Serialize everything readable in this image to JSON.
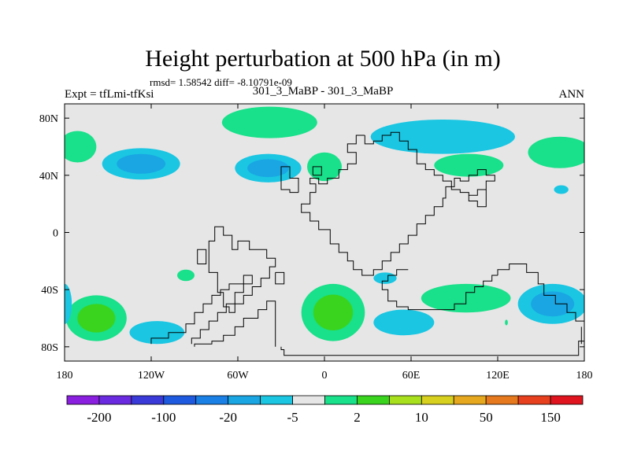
{
  "chart_data": {
    "type": "heatmap",
    "title": "Height perturbation at 500 hPa (in m)",
    "stats_text": "rmsd= 1.58542  diff= -8.10791e-09",
    "left_label": "Expt = tfLmi-tfKsi",
    "center_label": "301_3_MaBP - 301_3_MaBP",
    "right_label": "ANN",
    "xlim": [
      -180,
      180
    ],
    "ylim": [
      -90,
      90
    ],
    "x_ticks": [
      {
        "value": -180,
        "label": "180"
      },
      {
        "value": -120,
        "label": "120W"
      },
      {
        "value": -60,
        "label": "60W"
      },
      {
        "value": 0,
        "label": "0"
      },
      {
        "value": 60,
        "label": "60E"
      },
      {
        "value": 120,
        "label": "120E"
      },
      {
        "value": 180,
        "label": "180"
      }
    ],
    "y_ticks": [
      {
        "value": 80,
        "label": "80N"
      },
      {
        "value": 40,
        "label": "40N"
      },
      {
        "value": 0,
        "label": "0"
      },
      {
        "value": -40,
        "label": "40S"
      },
      {
        "value": -80,
        "label": "80S"
      }
    ],
    "colorbar": {
      "colors": [
        "#8a1fe0",
        "#6a2ae0",
        "#3a3ad8",
        "#1e5ae0",
        "#1a80e6",
        "#19a6e3",
        "#1ac6e2",
        "#e6e6e6",
        "#19e08a",
        "#3ad41e",
        "#a8e01e",
        "#d8d01e",
        "#e6a81e",
        "#e6781e",
        "#e6401e",
        "#e0141e"
      ],
      "tick_labels": [
        "-200",
        "-100",
        "-20",
        "-5",
        "2",
        "10",
        "50",
        "150"
      ]
    },
    "field_color": "#e6e6e6",
    "anomalies": [
      {
        "lon": -38,
        "lat": 77,
        "rx": 33,
        "ry": 11,
        "levels": [
          "#19e08a"
        ]
      },
      {
        "lon": 82,
        "lat": 67,
        "rx": 50,
        "ry": 12,
        "levels": [
          "#1ac6e2"
        ]
      },
      {
        "lon": -171,
        "lat": 60,
        "rx": 13,
        "ry": 11,
        "levels": [
          "#19e08a"
        ]
      },
      {
        "lon": -127,
        "lat": 48,
        "rx": 27,
        "ry": 11,
        "levels": [
          "#1ac6e2",
          "#19a6e3"
        ]
      },
      {
        "lon": -39,
        "lat": 45,
        "rx": 23,
        "ry": 10,
        "levels": [
          "#1ac6e2",
          "#19a6e3"
        ]
      },
      {
        "lon": 0,
        "lat": 46,
        "rx": 12,
        "ry": 10,
        "levels": [
          "#19e08a"
        ]
      },
      {
        "lon": 100,
        "lat": 47,
        "rx": 24,
        "ry": 8,
        "levels": [
          "#19e08a"
        ]
      },
      {
        "lon": 163,
        "lat": 56,
        "rx": 22,
        "ry": 11,
        "levels": [
          "#19e08a"
        ]
      },
      {
        "lon": 164,
        "lat": 30,
        "rx": 5,
        "ry": 3,
        "levels": [
          "#1ac6e2"
        ]
      },
      {
        "lon": -96,
        "lat": -30,
        "rx": 6,
        "ry": 4,
        "levels": [
          "#19e08a"
        ]
      },
      {
        "lon": 42,
        "lat": -32,
        "rx": 8,
        "ry": 4,
        "levels": [
          "#1ac6e2"
        ]
      },
      {
        "lon": -158,
        "lat": -60,
        "rx": 21,
        "ry": 16,
        "levels": [
          "#19e08a",
          "#3ad41e"
        ]
      },
      {
        "lon": -116,
        "lat": -70,
        "rx": 19,
        "ry": 8,
        "levels": [
          "#1ac6e2"
        ]
      },
      {
        "lon": -180,
        "lat": -50,
        "rx": 5,
        "ry": 14,
        "levels": [
          "#1ac6e2"
        ]
      },
      {
        "lon": 6,
        "lat": -56,
        "rx": 22,
        "ry": 20,
        "levels": [
          "#19e08a",
          "#3ad41e"
        ]
      },
      {
        "lon": 55,
        "lat": -63,
        "rx": 21,
        "ry": 9,
        "levels": [
          "#1ac6e2"
        ]
      },
      {
        "lon": 98,
        "lat": -46,
        "rx": 31,
        "ry": 10,
        "levels": [
          "#19e08a"
        ]
      },
      {
        "lon": 158,
        "lat": -50,
        "rx": 24,
        "ry": 14,
        "levels": [
          "#1ac6e2",
          "#19a6e3"
        ]
      },
      {
        "lon": 126,
        "lat": -63,
        "rx": 1,
        "ry": 2,
        "levels": [
          "#19e08a"
        ]
      }
    ],
    "outline_color": "#000000",
    "outlines": [
      [
        [
          28,
          68
        ],
        [
          28,
          62
        ],
        [
          34,
          62
        ],
        [
          34,
          64
        ],
        [
          40,
          64
        ],
        [
          40,
          68
        ],
        [
          46,
          68
        ],
        [
          46,
          70
        ],
        [
          52,
          70
        ],
        [
          52,
          64
        ],
        [
          58,
          64
        ],
        [
          58,
          58
        ],
        [
          64,
          58
        ],
        [
          64,
          48
        ],
        [
          70,
          48
        ],
        [
          70,
          44
        ],
        [
          76,
          44
        ],
        [
          76,
          40
        ],
        [
          82,
          40
        ],
        [
          82,
          36
        ],
        [
          88,
          36
        ],
        [
          88,
          30
        ],
        [
          94,
          30
        ],
        [
          94,
          28
        ],
        [
          100,
          28
        ],
        [
          100,
          26
        ],
        [
          106,
          26
        ],
        [
          106,
          30
        ],
        [
          112,
          30
        ],
        [
          112,
          36
        ],
        [
          118,
          36
        ],
        [
          118,
          40
        ],
        [
          112,
          40
        ],
        [
          112,
          44
        ],
        [
          106,
          44
        ],
        [
          106,
          40
        ],
        [
          100,
          40
        ],
        [
          100,
          36
        ],
        [
          94,
          36
        ],
        [
          94,
          38
        ],
        [
          90,
          38
        ],
        [
          90,
          32
        ],
        [
          84,
          32
        ],
        [
          84,
          24
        ],
        [
          82,
          24
        ],
        [
          82,
          18
        ],
        [
          76,
          18
        ],
        [
          76,
          12
        ],
        [
          70,
          12
        ],
        [
          70,
          6
        ],
        [
          64,
          6
        ],
        [
          64,
          -2
        ],
        [
          58,
          -2
        ],
        [
          58,
          -8
        ],
        [
          52,
          -8
        ],
        [
          52,
          -14
        ],
        [
          46,
          -14
        ],
        [
          46,
          -20
        ],
        [
          40,
          -20
        ],
        [
          40,
          -26
        ],
        [
          34,
          -26
        ],
        [
          34,
          -30
        ],
        [
          26,
          -30
        ],
        [
          26,
          -26
        ],
        [
          20,
          -26
        ],
        [
          20,
          -20
        ],
        [
          16,
          -20
        ],
        [
          16,
          -14
        ],
        [
          10,
          -14
        ],
        [
          10,
          -8
        ],
        [
          4,
          -8
        ],
        [
          4,
          2
        ],
        [
          -4,
          2
        ],
        [
          -4,
          8
        ],
        [
          -10,
          8
        ],
        [
          -10,
          14
        ],
        [
          -16,
          14
        ],
        [
          -16,
          20
        ],
        [
          -10,
          20
        ],
        [
          -10,
          28
        ],
        [
          -6,
          28
        ],
        [
          -6,
          34
        ],
        [
          -10,
          34
        ],
        [
          -10,
          38
        ],
        [
          -4,
          38
        ],
        [
          -4,
          34
        ],
        [
          2,
          34
        ],
        [
          2,
          38
        ],
        [
          10,
          38
        ],
        [
          10,
          44
        ],
        [
          16,
          44
        ],
        [
          16,
          48
        ],
        [
          22,
          48
        ],
        [
          22,
          56
        ],
        [
          16,
          56
        ],
        [
          16,
          62
        ],
        [
          22,
          62
        ],
        [
          22,
          68
        ],
        [
          28,
          68
        ]
      ],
      [
        [
          -18,
          28
        ],
        [
          -18,
          38
        ],
        [
          -24,
          38
        ],
        [
          -24,
          46
        ],
        [
          -30,
          46
        ],
        [
          -30,
          30
        ],
        [
          -24,
          30
        ],
        [
          -24,
          28
        ],
        [
          -18,
          28
        ]
      ],
      [
        [
          -8,
          40
        ],
        [
          -8,
          46
        ],
        [
          -2,
          46
        ],
        [
          -2,
          40
        ],
        [
          -8,
          40
        ]
      ],
      [
        [
          -80,
          -20
        ],
        [
          -80,
          -6
        ],
        [
          -76,
          -6
        ],
        [
          -76,
          4
        ],
        [
          -70,
          4
        ],
        [
          -70,
          -2
        ],
        [
          -64,
          -2
        ],
        [
          -64,
          -12
        ],
        [
          -60,
          -12
        ],
        [
          -60,
          -6
        ],
        [
          -52,
          -6
        ],
        [
          -52,
          -12
        ],
        [
          -40,
          -12
        ],
        [
          -40,
          -18
        ],
        [
          -34,
          -18
        ],
        [
          -34,
          -24
        ],
        [
          -38,
          -24
        ],
        [
          -38,
          -32
        ],
        [
          -44,
          -32
        ],
        [
          -44,
          -38
        ],
        [
          -50,
          -38
        ],
        [
          -50,
          -44
        ],
        [
          -56,
          -44
        ],
        [
          -56,
          -50
        ],
        [
          -62,
          -50
        ],
        [
          -62,
          -56
        ],
        [
          -66,
          -56
        ],
        [
          -66,
          -52
        ],
        [
          -70,
          -52
        ],
        [
          -70,
          -42
        ],
        [
          -74,
          -42
        ],
        [
          -74,
          -28
        ],
        [
          -80,
          -28
        ],
        [
          -80,
          -20
        ]
      ],
      [
        [
          -88,
          -22
        ],
        [
          -88,
          -12
        ],
        [
          -82,
          -12
        ],
        [
          -82,
          -22
        ],
        [
          -88,
          -22
        ]
      ],
      [
        [
          -34,
          -28
        ],
        [
          -34,
          -36
        ],
        [
          -28,
          -36
        ],
        [
          -28,
          -28
        ],
        [
          -34,
          -28
        ]
      ],
      [
        [
          120,
          -30
        ],
        [
          120,
          -26
        ],
        [
          128,
          -26
        ],
        [
          128,
          -22
        ],
        [
          140,
          -22
        ],
        [
          140,
          -28
        ],
        [
          148,
          -28
        ],
        [
          148,
          -36
        ],
        [
          152,
          -36
        ],
        [
          152,
          -44
        ],
        [
          160,
          -44
        ],
        [
          160,
          -50
        ],
        [
          168,
          -50
        ],
        [
          168,
          -56
        ],
        [
          174,
          -56
        ],
        [
          174,
          -62
        ],
        [
          180,
          -62
        ]
      ],
      [
        [
          120,
          -30
        ],
        [
          116,
          -30
        ],
        [
          116,
          -34
        ],
        [
          110,
          -34
        ],
        [
          110,
          -38
        ],
        [
          104,
          -38
        ],
        [
          104,
          -42
        ],
        [
          98,
          -42
        ],
        [
          98,
          -50
        ],
        [
          90,
          -50
        ],
        [
          90,
          -54
        ],
        [
          58,
          -54
        ],
        [
          58,
          -52
        ],
        [
          50,
          -52
        ],
        [
          50,
          -48
        ],
        [
          44,
          -48
        ],
        [
          44,
          -40
        ],
        [
          40,
          -40
        ],
        [
          40,
          -34
        ],
        [
          44,
          -34
        ],
        [
          44,
          -30
        ],
        [
          50,
          -30
        ],
        [
          50,
          -26
        ],
        [
          58,
          -26
        ]
      ],
      [
        [
          -120,
          -78
        ],
        [
          -120,
          -74
        ],
        [
          -108,
          -74
        ],
        [
          -108,
          -70
        ],
        [
          -96,
          -70
        ],
        [
          -96,
          -64
        ],
        [
          -90,
          -64
        ],
        [
          -90,
          -56
        ],
        [
          -84,
          -56
        ],
        [
          -84,
          -50
        ],
        [
          -78,
          -50
        ],
        [
          -78,
          -44
        ],
        [
          -72,
          -44
        ],
        [
          -72,
          -40
        ],
        [
          -66,
          -40
        ],
        [
          -66,
          -36
        ],
        [
          -56,
          -36
        ],
        [
          -56,
          -30
        ],
        [
          -50,
          -30
        ],
        [
          -50,
          -36
        ],
        [
          -56,
          -36
        ],
        [
          -56,
          -42
        ],
        [
          -62,
          -42
        ],
        [
          -62,
          -50
        ],
        [
          -68,
          -50
        ],
        [
          -68,
          -56
        ],
        [
          -74,
          -56
        ],
        [
          -74,
          -62
        ],
        [
          -80,
          -62
        ],
        [
          -80,
          -68
        ],
        [
          -86,
          -68
        ],
        [
          -86,
          -74
        ],
        [
          -92,
          -74
        ],
        [
          -92,
          -78
        ]
      ],
      [
        [
          -90,
          -80
        ],
        [
          -90,
          -78
        ],
        [
          -78,
          -78
        ],
        [
          -78,
          -76
        ],
        [
          -70,
          -76
        ],
        [
          -70,
          -72
        ],
        [
          -62,
          -72
        ],
        [
          -62,
          -66
        ],
        [
          -56,
          -66
        ],
        [
          -56,
          -60
        ],
        [
          -46,
          -60
        ],
        [
          -46,
          -54
        ],
        [
          -40,
          -54
        ],
        [
          -40,
          -48
        ],
        [
          -34,
          -48
        ],
        [
          -34,
          -80
        ]
      ],
      [
        [
          -30,
          -80
        ],
        [
          -30,
          -82
        ],
        [
          -28,
          -82
        ],
        [
          -28,
          -86
        ],
        [
          176,
          -86
        ],
        [
          176,
          -76
        ],
        [
          180,
          -76
        ]
      ],
      [
        [
          178,
          -66
        ],
        [
          178,
          -78
        ]
      ],
      [
        [
          100,
          26
        ],
        [
          100,
          22
        ],
        [
          106,
          22
        ],
        [
          106,
          18
        ],
        [
          112,
          18
        ],
        [
          112,
          30
        ]
      ]
    ]
  }
}
